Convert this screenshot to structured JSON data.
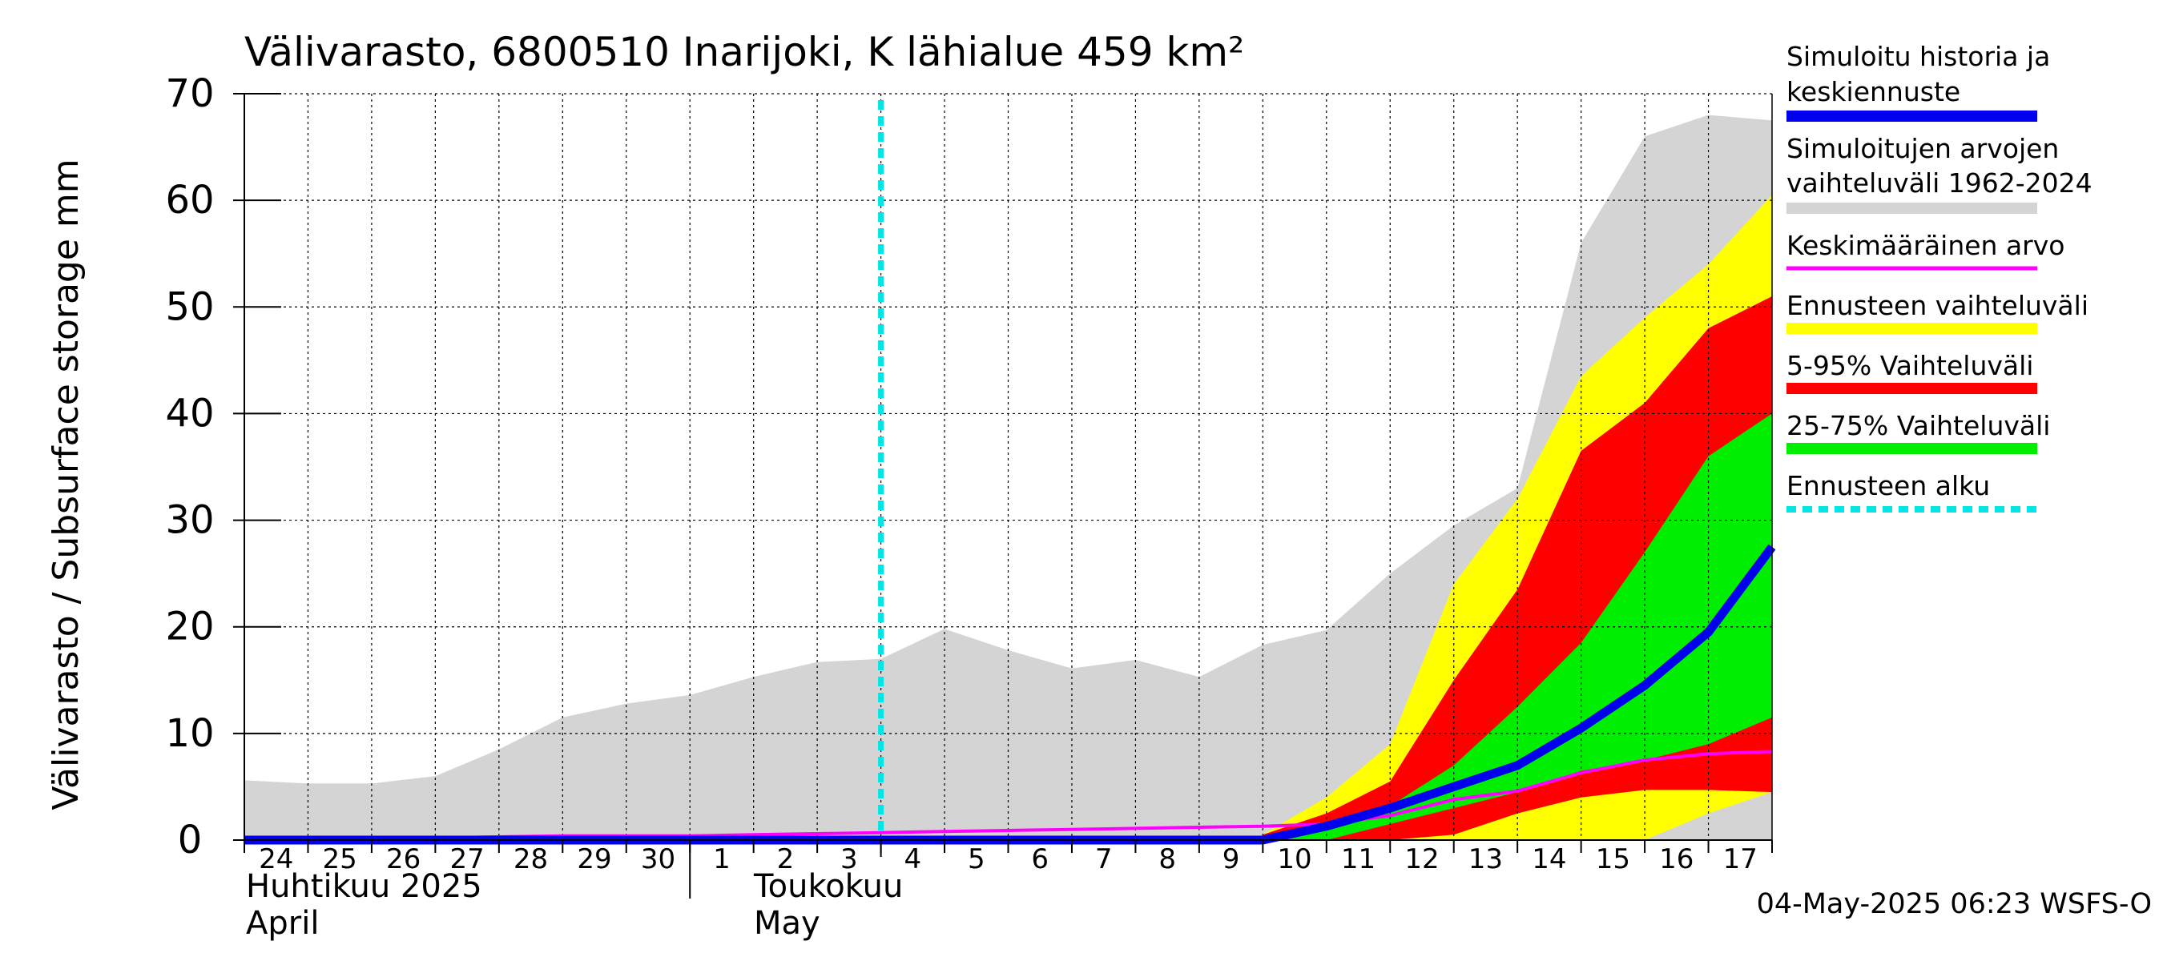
{
  "chart_data": {
    "type": "area",
    "title": "Välivarasto, 6800510 Inarijoki, K lähialue 459 km²",
    "ylabel": "Välivarasto / Subsurface storage  mm",
    "ylim": [
      0,
      70
    ],
    "yticks": [
      0,
      10,
      20,
      30,
      40,
      50,
      60,
      70
    ],
    "x_start": "2025-04-24",
    "x_end": "2025-05-18",
    "grid": true,
    "legend_position": "right",
    "xtick_labels": [
      "24",
      "25",
      "26",
      "27",
      "28",
      "29",
      "30",
      "1",
      "2",
      "3",
      "4",
      "5",
      "6",
      "7",
      "8",
      "9",
      "10",
      "11",
      "12",
      "13",
      "14",
      "15",
      "16",
      "17"
    ],
    "month_labels": [
      {
        "fi": "Huhtikuu  2025",
        "en": "April"
      },
      {
        "fi": "Toukokuu",
        "en": "May"
      }
    ],
    "forecast_start": "2025-05-04",
    "series": [
      {
        "name": "Simuloitujen arvojen vaihteluväli 1962-2024",
        "color": "#d4d4d4",
        "x": [
          "04-24",
          "04-25",
          "04-26",
          "04-27",
          "04-28",
          "04-29",
          "04-30",
          "05-01",
          "05-02",
          "05-03",
          "05-04",
          "05-05",
          "05-06",
          "05-07",
          "05-08",
          "05-09",
          "05-10",
          "05-11",
          "05-12",
          "05-13",
          "05-14",
          "05-15",
          "05-16",
          "05-17",
          "05-18"
        ],
        "upper": [
          5.6,
          5.3,
          5.3,
          6.0,
          8.5,
          11.5,
          12.8,
          13.6,
          15.3,
          16.7,
          17.0,
          19.8,
          17.8,
          16.1,
          16.9,
          15.3,
          18.3,
          19.7,
          25.0,
          29.5,
          33.0,
          56.0,
          66.0,
          68.0,
          67.5
        ],
        "lower": [
          0,
          0,
          0,
          0,
          0,
          0,
          0,
          0,
          0,
          0,
          0,
          0,
          0,
          0,
          0,
          0,
          0,
          0,
          0,
          0,
          0,
          0,
          0,
          0,
          0
        ]
      },
      {
        "name": "Ennusteen vaihteluväli",
        "color": "#ffff00",
        "x": [
          "05-10",
          "05-11",
          "05-12",
          "05-13",
          "05-14",
          "05-15",
          "05-16",
          "05-17",
          "05-18"
        ],
        "upper": [
          0.5,
          4.0,
          9.0,
          24.0,
          32.0,
          43.5,
          49.0,
          54.0,
          60.5
        ],
        "lower": [
          0,
          0,
          0,
          0,
          0,
          0,
          0,
          2.5,
          4.5
        ]
      },
      {
        "name": "5-95% Vaihteluväli",
        "color": "#ff0000",
        "x": [
          "05-10",
          "05-11",
          "05-12",
          "05-13",
          "05-14",
          "05-15",
          "05-16",
          "05-17",
          "05-18"
        ],
        "upper": [
          0.5,
          2.5,
          5.5,
          15.0,
          23.5,
          36.5,
          41.0,
          48.0,
          51.0
        ],
        "lower": [
          0,
          0,
          0,
          0.5,
          2.5,
          4.0,
          4.7,
          4.7,
          4.5
        ]
      },
      {
        "name": "25-75% Vaihteluväli",
        "color": "#00ee00",
        "x": [
          "05-10",
          "05-11",
          "05-12",
          "05-13",
          "05-14",
          "05-15",
          "05-16",
          "05-17",
          "05-18"
        ],
        "upper": [
          0.3,
          1.2,
          3.2,
          7.0,
          12.5,
          18.5,
          27.0,
          36.0,
          40.0
        ],
        "lower": [
          0,
          0,
          1.5,
          3.0,
          4.5,
          6.5,
          7.5,
          9.0,
          11.5
        ]
      },
      {
        "name": "Keskimääräinen arvo",
        "color": "#ff00ff",
        "x": [
          "04-24",
          "04-25",
          "04-26",
          "04-27",
          "04-28",
          "04-29",
          "04-30",
          "05-01",
          "05-02",
          "05-03",
          "05-04",
          "05-05",
          "05-06",
          "05-07",
          "05-08",
          "05-09",
          "05-10",
          "05-11",
          "05-12",
          "05-13",
          "05-14",
          "05-15",
          "05-16",
          "05-17",
          "05-18"
        ],
        "values": [
          0.1,
          0.1,
          0.1,
          0.2,
          0.3,
          0.4,
          0.4,
          0.4,
          0.5,
          0.6,
          0.7,
          0.8,
          0.9,
          1.0,
          1.1,
          1.2,
          1.3,
          1.5,
          2.3,
          3.8,
          4.6,
          6.3,
          7.5,
          8.1,
          8.3
        ]
      },
      {
        "name": "Simuloitu historia ja keskiennuste",
        "color": "#0000ee",
        "x": [
          "04-24",
          "04-25",
          "04-26",
          "04-27",
          "04-28",
          "04-29",
          "04-30",
          "05-01",
          "05-02",
          "05-03",
          "05-04",
          "05-05",
          "05-06",
          "05-07",
          "05-08",
          "05-09",
          "05-10",
          "05-11",
          "05-12",
          "05-13",
          "05-14",
          "05-15",
          "05-16",
          "05-17",
          "05-18"
        ],
        "values": [
          0,
          0,
          0,
          0,
          0,
          0,
          0,
          0,
          0,
          0,
          0,
          0,
          0,
          0,
          0,
          0,
          0,
          1.3,
          3.0,
          5.0,
          7.0,
          10.5,
          14.5,
          19.5,
          27.5
        ]
      }
    ],
    "legend": [
      {
        "label": "Simuloitu historia ja keskiennuste",
        "color": "#0000ee",
        "style": "thick"
      },
      {
        "label": "Simuloitujen arvojen vaihteluväli 1962-2024",
        "color": "#d4d4d4",
        "style": "thick"
      },
      {
        "label": "Keskimääräinen arvo",
        "color": "#ff00ff",
        "style": "thin"
      },
      {
        "label": "Ennusteen vaihteluväli",
        "color": "#ffff00",
        "style": "thick"
      },
      {
        "label": "5-95% Vaihteluväli",
        "color": "#ff0000",
        "style": "thick"
      },
      {
        "label": "25-75% Vaihteluväli",
        "color": "#00ee00",
        "style": "thick"
      },
      {
        "label": "Ennusteen alku",
        "color": "#00e5e5",
        "style": "dashed"
      }
    ],
    "timestamp": "04-May-2025 06:23 WSFS-O"
  }
}
